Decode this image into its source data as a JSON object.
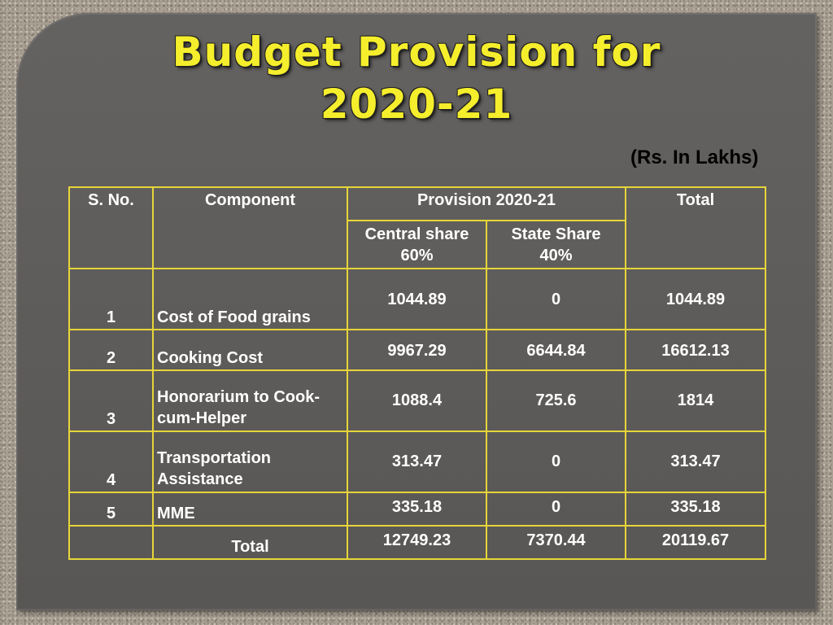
{
  "title": {
    "line1": "Budget Provision for",
    "line2": "2020-21"
  },
  "unit_note": "(Rs. In Lakhs)",
  "table": {
    "headers": {
      "sno": "S. No.",
      "component": "Component",
      "provision": "Provision 2020-21",
      "central_share": "Central share",
      "central_pct": "60%",
      "state_share": "State Share",
      "state_pct": "40%",
      "total": "Total"
    },
    "rows": [
      {
        "sno": "1",
        "component": "Cost of Food grains",
        "central": "1044.89",
        "state": "0",
        "total": "1044.89"
      },
      {
        "sno": "2",
        "component": "Cooking Cost",
        "central": "9967.29",
        "state": "6644.84",
        "total": "16612.13"
      },
      {
        "sno": "3",
        "component_line1": "Honorarium to Cook-",
        "component_line2": "cum-Helper",
        "central": "1088.4",
        "state": "725.6",
        "total": "1814"
      },
      {
        "sno": "4",
        "component_line1": "Transportation",
        "component_line2": "Assistance",
        "central": "313.47",
        "state": "0",
        "total": "313.47"
      },
      {
        "sno": "5",
        "component": "MME",
        "central": "335.18",
        "state": "0",
        "total": "335.18"
      }
    ],
    "total_row": {
      "label": "Total",
      "central": "12749.23",
      "state": "7370.44",
      "total": "20119.67"
    }
  },
  "colors": {
    "title": "#f5ee2c",
    "panel": "#5e5c5a",
    "table_border": "#e6d53a",
    "table_text": "#ffffff"
  }
}
